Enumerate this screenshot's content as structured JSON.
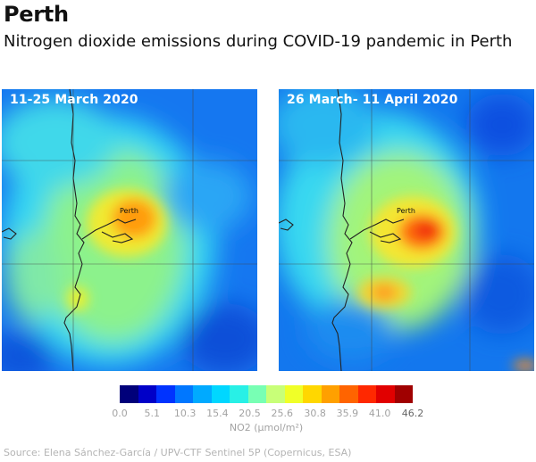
{
  "title": "Perth",
  "subtitle": "Nitrogen dioxide emissions during COVID-19 pandemic in Perth",
  "maps": [
    {
      "label": "11-25 March 2020",
      "city": "Perth",
      "hotspot_level": 37
    },
    {
      "label": "26 March- 11 April 2020",
      "city": "Perth",
      "hotspot_level": 42
    }
  ],
  "legend": {
    "ticks": [
      "0.0",
      "5.1",
      "10.3",
      "15.4",
      "20.5",
      "25.6",
      "30.8",
      "35.9",
      "41.0",
      "46.2"
    ],
    "min": 0.0,
    "max": 46.2,
    "unit": "NO2 (µmol/m²)",
    "colors": [
      "#00007a",
      "#0000c8",
      "#0033ff",
      "#0077ff",
      "#00aaff",
      "#00d7ff",
      "#28f0e6",
      "#78ffb4",
      "#c8ff78",
      "#f0ff28",
      "#ffd700",
      "#ffa000",
      "#ff6400",
      "#ff2800",
      "#e10000",
      "#a00000"
    ]
  },
  "source": "Source: Elena Sánchez-García / UPV-CTF Sentinel 5P (Copernicus, ESA)"
}
